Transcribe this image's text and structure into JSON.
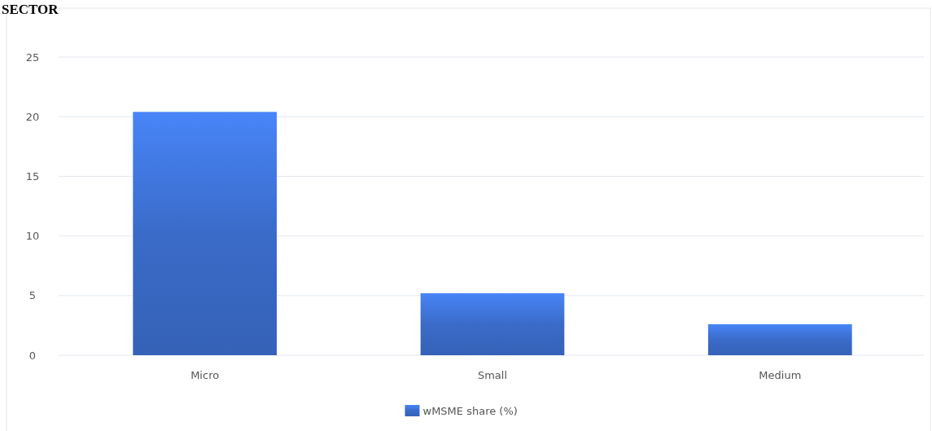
{
  "chart_data": {
    "type": "bar",
    "title": "SECTOR",
    "categories": [
      "Micro",
      "Small",
      "Medium"
    ],
    "series": [
      {
        "name": "wMSME share (%)",
        "color": "#3a6bc8",
        "values": [
          20.4,
          5.2,
          2.6
        ]
      }
    ],
    "ylim": [
      0,
      25
    ],
    "yticks": [
      0,
      5,
      10,
      15,
      20,
      25
    ],
    "grid": "y",
    "legend": "bottom"
  }
}
